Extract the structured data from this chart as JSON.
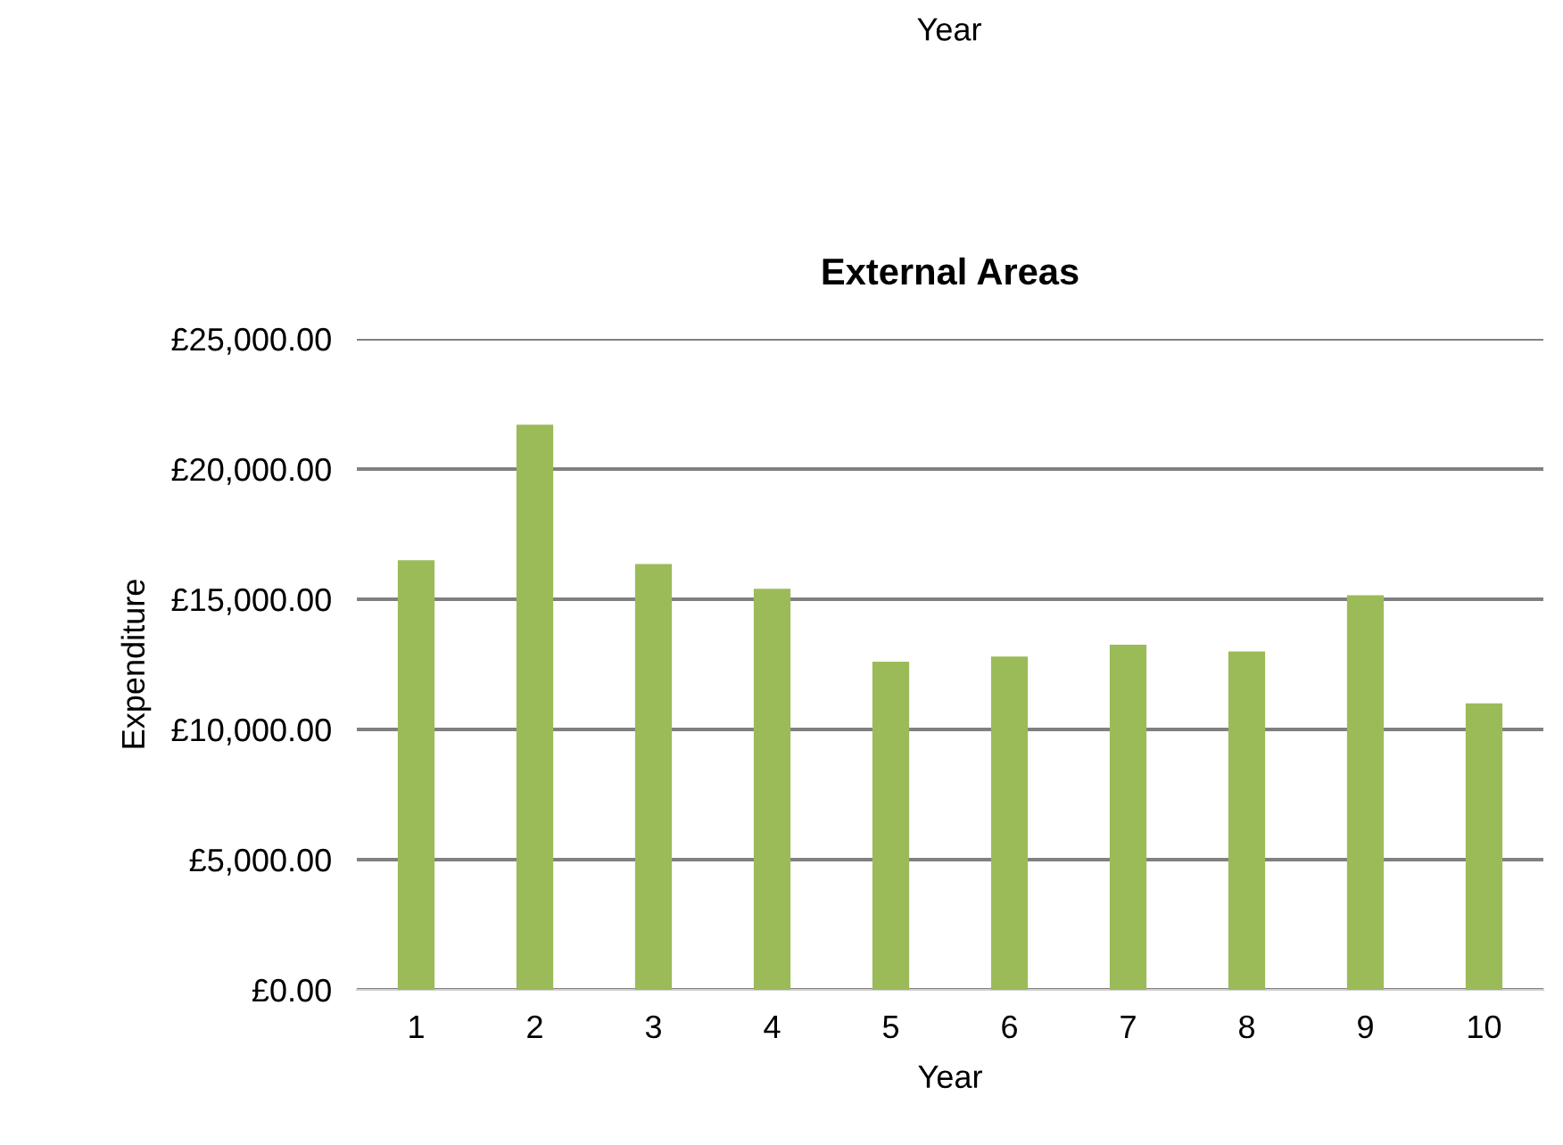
{
  "chart_data": {
    "type": "bar",
    "title": "External Areas",
    "xlabel": "Year",
    "ylabel": "Expenditure",
    "annotations": [
      "Year"
    ],
    "categories": [
      "1",
      "2",
      "3",
      "4",
      "5",
      "6",
      "7",
      "8",
      "9",
      "10"
    ],
    "values": [
      16500,
      21700,
      16350,
      15400,
      12600,
      12800,
      13250,
      13000,
      15150,
      11000
    ],
    "color": "#9bbb59",
    "ylim": [
      0,
      25000
    ],
    "yticks": [
      {
        "value": 0,
        "label": "£0.00"
      },
      {
        "value": 5000,
        "label": "£5,000.00"
      },
      {
        "value": 10000,
        "label": "£10,000.00"
      },
      {
        "value": 15000,
        "label": "£15,000.00"
      },
      {
        "value": 20000,
        "label": "£20,000.00"
      },
      {
        "value": 25000,
        "label": "£25,000.00"
      }
    ],
    "grid": "y"
  }
}
